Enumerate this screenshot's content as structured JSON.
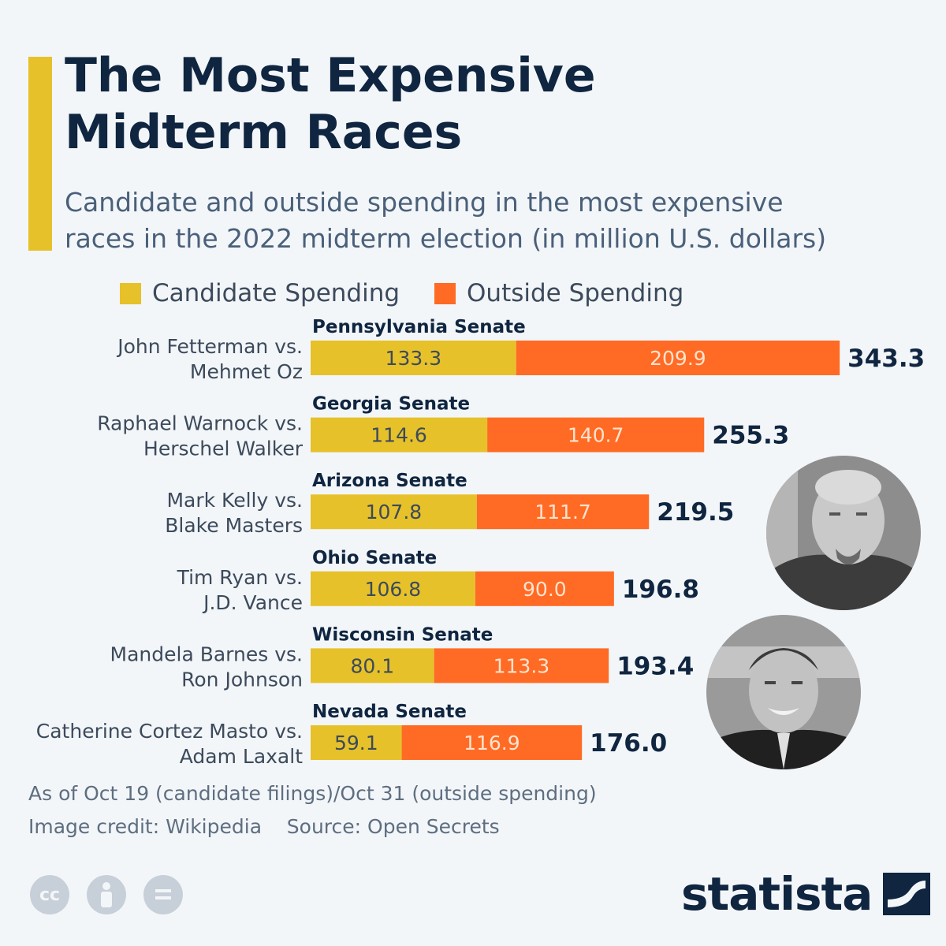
{
  "title_line1": "The Most Expensive",
  "title_line2": "Midterm Races",
  "subtitle_line1": "Candidate and outside spending in the most expensive",
  "subtitle_line2": "races in the 2022 midterm election (in million U.S. dollars)",
  "colors": {
    "accent": "#e6c12a",
    "candidate": "#e6c12a",
    "outside": "#ff6b24",
    "title": "#0f2540"
  },
  "chart_data": {
    "type": "bar",
    "orientation": "horizontal",
    "stacked": true,
    "categories": [
      {
        "race": "Pennsylvania Senate",
        "line1": "John Fetterman vs.",
        "line2": "Mehmet Oz"
      },
      {
        "race": "Georgia Senate",
        "line1": "Raphael Warnock vs.",
        "line2": "Herschel Walker"
      },
      {
        "race": "Arizona Senate",
        "line1": "Mark Kelly vs.",
        "line2": "Blake Masters"
      },
      {
        "race": "Ohio Senate",
        "line1": "Tim Ryan vs.",
        "line2": "J.D. Vance"
      },
      {
        "race": "Wisconsin Senate",
        "line1": "Mandela Barnes vs.",
        "line2": "Ron Johnson"
      },
      {
        "race": "Nevada Senate",
        "line1": "Catherine Cortez Masto vs.",
        "line2": "Adam Laxalt"
      }
    ],
    "series": [
      {
        "name": "Candidate Spending",
        "color": "#e6c12a",
        "values": [
          "133.3",
          "114.6",
          "107.8",
          "106.8",
          "80.1",
          "59.1"
        ]
      },
      {
        "name": "Outside Spending",
        "color": "#ff6b24",
        "values": [
          "209.9",
          "140.7",
          "111.7",
          "90.0",
          "113.3",
          "116.9"
        ]
      }
    ],
    "totals": [
      "343.3",
      "255.3",
      "219.5",
      "196.8",
      "193.4",
      "176.0"
    ],
    "legend_position": "top",
    "grid": false
  },
  "footnote_line1": "As of Oct 19 (candidate filings)/Oct 31 (outside spending)",
  "footnote_line2": "Image credit: Wikipedia    Source: Open Secrets",
  "license_icons": [
    "cc",
    "by",
    "nd"
  ],
  "logo_text": "statista",
  "photos": [
    "fetterman-photo",
    "oz-photo"
  ]
}
